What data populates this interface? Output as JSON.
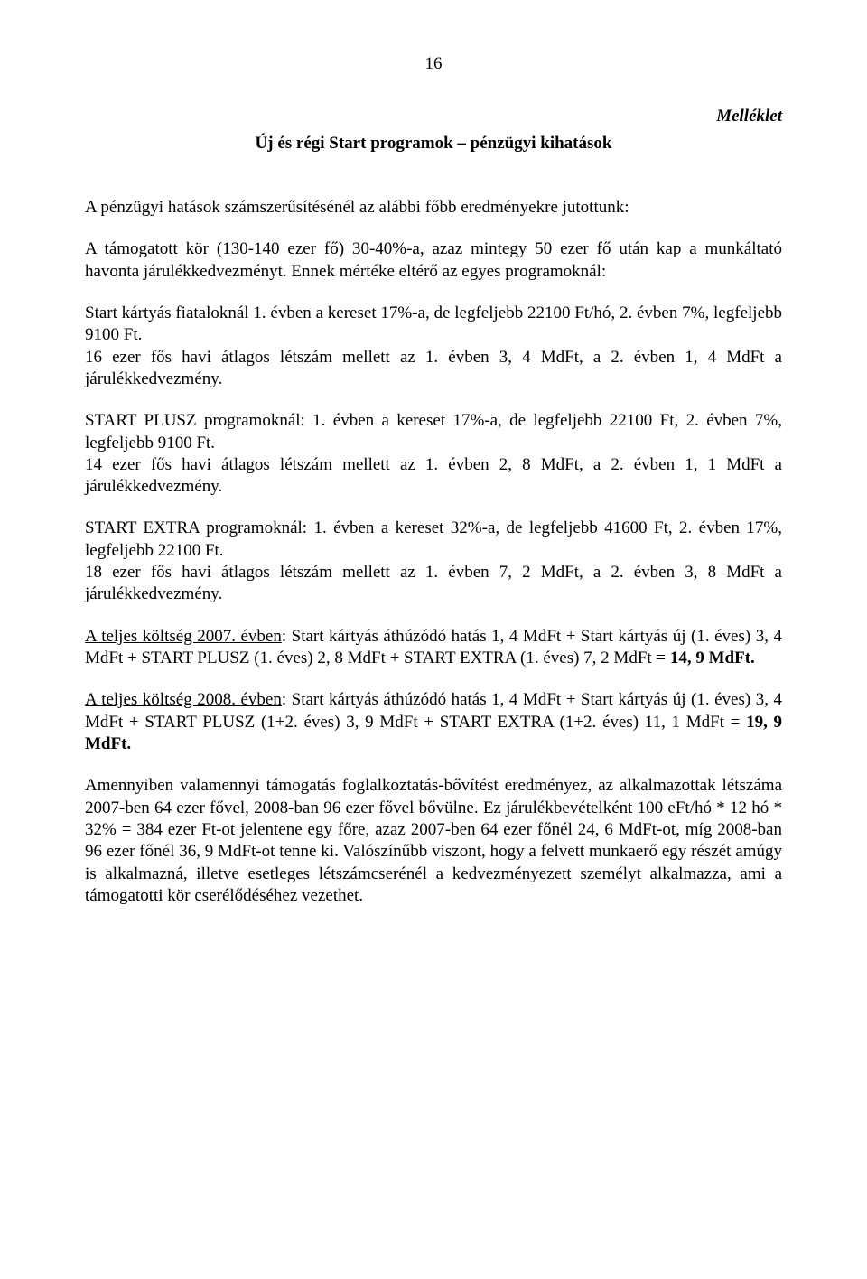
{
  "page_number": "16",
  "appendix_label": "Melléklet",
  "subtitle": "Új és régi Start programok – pénzügyi kihatások",
  "paragraphs": {
    "intro": "A pénzügyi hatások számszerűsítésénél az alábbi főbb eredményekre jutottunk:",
    "p1": "A támogatott kör (130-140 ezer fő) 30-40%-a, azaz mintegy 50 ezer fő után kap a munkáltató havonta járulékkedvezményt. Ennek mértéke eltérő az egyes programoknál:",
    "p2": "Start kártyás fiataloknál 1. évben a kereset 17%-a, de legfeljebb 22100 Ft/hó, 2. évben 7%, legfeljebb 9100 Ft.",
    "p2b": "16 ezer fős havi átlagos létszám mellett az 1. évben 3, 4 MdFt, a 2. évben 1, 4 MdFt a járulékkedvezmény.",
    "p3": "START PLUSZ programoknál: 1. évben a kereset 17%-a, de legfeljebb 22100 Ft, 2. évben 7%, legfeljebb 9100 Ft.",
    "p3b": "14 ezer fős havi átlagos létszám mellett az 1. évben 2, 8 MdFt, a 2. évben 1, 1 MdFt a járulékkedvezmény.",
    "p4": "START EXTRA programoknál: 1. évben a kereset 32%-a, de legfeljebb 41600 Ft, 2. évben 17%, legfeljebb 22100 Ft.",
    "p4b": "18 ezer fős havi átlagos létszám mellett az 1. évben 7, 2 MdFt, a 2. évben 3, 8 MdFt a járulékkedvezmény.",
    "p5_pre": "A teljes költség 2007. évben",
    "p5_post": ": Start kártyás áthúzódó hatás 1, 4 MdFt + Start kártyás új (1. éves) 3, 4 MdFt + START PLUSZ (1. éves) 2, 8 MdFt + START EXTRA (1. éves) 7, 2 MdFt = ",
    "p5_bold": "14, 9 MdFt.",
    "p6_pre": "A teljes költség 2008. évben",
    "p6_post": ": Start kártyás áthúzódó hatás 1, 4 MdFt + Start kártyás új (1. éves) 3, 4 MdFt + START PLUSZ (1+2. éves) 3, 9 MdFt + START EXTRA (1+2. éves) 11, 1 MdFt = ",
    "p6_bold": "19, 9 MdFt.",
    "p7": "Amennyiben valamennyi támogatás foglalkoztatás-bővítést eredményez, az alkalmazottak létszáma 2007-ben 64 ezer fővel, 2008-ban 96 ezer fővel bővülne. Ez járulékbevételként 100 eFt/hó * 12 hó * 32% = 384 ezer Ft-ot jelentene egy főre, azaz 2007-ben 64 ezer főnél 24, 6 MdFt-ot, míg 2008-ban 96 ezer főnél 36, 9 MdFt-ot tenne ki. Valószínűbb viszont, hogy a felvett munkaerő egy részét amúgy is alkalmazná, illetve esetleges létszámcserénél a kedvezményezett személyt alkalmazza, ami a támogatotti kör cserélődéséhez vezethet."
  }
}
